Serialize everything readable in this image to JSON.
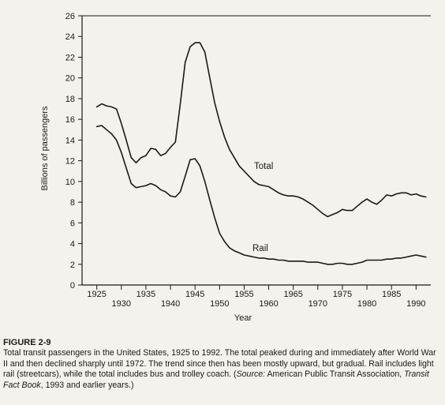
{
  "chart_data": {
    "type": "line",
    "title": "",
    "xlabel": "Year",
    "ylabel": "Billions of passengers",
    "xlim": [
      1922,
      1993
    ],
    "ylim": [
      0,
      26
    ],
    "y_ticks": [
      0,
      2,
      4,
      6,
      8,
      10,
      12,
      14,
      16,
      18,
      20,
      22,
      24,
      26
    ],
    "x_ticks_upper": [
      "1925",
      "1935",
      "1945",
      "1955",
      "1965",
      "1975",
      "1985"
    ],
    "x_ticks_lower": [
      "1930",
      "1940",
      "1950",
      "1960",
      "1970",
      "1980",
      "1990"
    ],
    "grid": false,
    "legend": "none (inline labels)",
    "series": [
      {
        "name": "Total",
        "x": [
          1925,
          1926,
          1927,
          1928,
          1929,
          1930,
          1931,
          1932,
          1933,
          1934,
          1935,
          1936,
          1937,
          1938,
          1939,
          1940,
          1941,
          1942,
          1943,
          1944,
          1945,
          1946,
          1947,
          1948,
          1949,
          1950,
          1951,
          1952,
          1953,
          1954,
          1955,
          1956,
          1957,
          1958,
          1959,
          1960,
          1961,
          1962,
          1963,
          1964,
          1965,
          1966,
          1967,
          1968,
          1969,
          1970,
          1971,
          1972,
          1973,
          1974,
          1975,
          1976,
          1977,
          1978,
          1979,
          1980,
          1981,
          1982,
          1983,
          1984,
          1985,
          1986,
          1987,
          1988,
          1989,
          1990,
          1991,
          1992
        ],
        "values": [
          17.2,
          17.5,
          17.3,
          17.2,
          17.0,
          15.6,
          14.0,
          12.3,
          11.8,
          12.3,
          12.5,
          13.2,
          13.1,
          12.5,
          12.7,
          13.3,
          13.8,
          17.5,
          21.5,
          23.0,
          23.4,
          23.4,
          22.5,
          20.0,
          17.6,
          15.8,
          14.3,
          13.1,
          12.3,
          11.5,
          11.0,
          10.5,
          10.0,
          9.7,
          9.6,
          9.5,
          9.2,
          8.9,
          8.7,
          8.6,
          8.6,
          8.5,
          8.3,
          8.0,
          7.7,
          7.3,
          6.9,
          6.6,
          6.8,
          7.0,
          7.3,
          7.2,
          7.2,
          7.6,
          8.0,
          8.3,
          8.0,
          7.8,
          8.2,
          8.7,
          8.6,
          8.8,
          8.9,
          8.9,
          8.7,
          8.8,
          8.6,
          8.5
        ]
      },
      {
        "name": "Rail",
        "x": [
          1925,
          1926,
          1927,
          1928,
          1929,
          1930,
          1931,
          1932,
          1933,
          1934,
          1935,
          1936,
          1937,
          1938,
          1939,
          1940,
          1941,
          1942,
          1943,
          1944,
          1945,
          1946,
          1947,
          1948,
          1949,
          1950,
          1951,
          1952,
          1953,
          1954,
          1955,
          1956,
          1957,
          1958,
          1959,
          1960,
          1961,
          1962,
          1963,
          1964,
          1965,
          1966,
          1967,
          1968,
          1969,
          1970,
          1971,
          1972,
          1973,
          1974,
          1975,
          1976,
          1977,
          1978,
          1979,
          1980,
          1981,
          1982,
          1983,
          1984,
          1985,
          1986,
          1987,
          1988,
          1989,
          1990,
          1991,
          1992
        ],
        "values": [
          15.3,
          15.4,
          15.0,
          14.6,
          14.0,
          12.8,
          11.3,
          9.8,
          9.4,
          9.5,
          9.6,
          9.8,
          9.6,
          9.2,
          9.0,
          8.6,
          8.5,
          9.0,
          10.5,
          12.1,
          12.2,
          11.5,
          10.0,
          8.2,
          6.5,
          5.0,
          4.2,
          3.6,
          3.3,
          3.1,
          2.9,
          2.8,
          2.7,
          2.6,
          2.6,
          2.5,
          2.5,
          2.4,
          2.4,
          2.3,
          2.3,
          2.3,
          2.3,
          2.2,
          2.2,
          2.2,
          2.1,
          2.0,
          2.0,
          2.1,
          2.1,
          2.0,
          2.0,
          2.1,
          2.2,
          2.4,
          2.4,
          2.4,
          2.4,
          2.5,
          2.5,
          2.6,
          2.6,
          2.7,
          2.8,
          2.9,
          2.8,
          2.7
        ]
      }
    ]
  },
  "series_labels": {
    "total": "Total",
    "rail": "Rail"
  },
  "caption": {
    "figure_label": "FIGURE 2-9",
    "text_before_source": "Total transit passengers in the United States, 1925 to 1992. The total peaked during and immediately after World War II and then declined sharply until 1972. The trend since then has been mostly upward, but gradual. Rail includes light rail (streetcars), while the total includes bus and trolley coach. (",
    "source_label": "Source:",
    "source_text": " American Public Transit Association, ",
    "book_title": "Transit Fact Book",
    "source_tail": ", 1993 and earlier years.)"
  },
  "colors": {
    "line": "#1a1a1a",
    "background": "#f4f2ec"
  }
}
